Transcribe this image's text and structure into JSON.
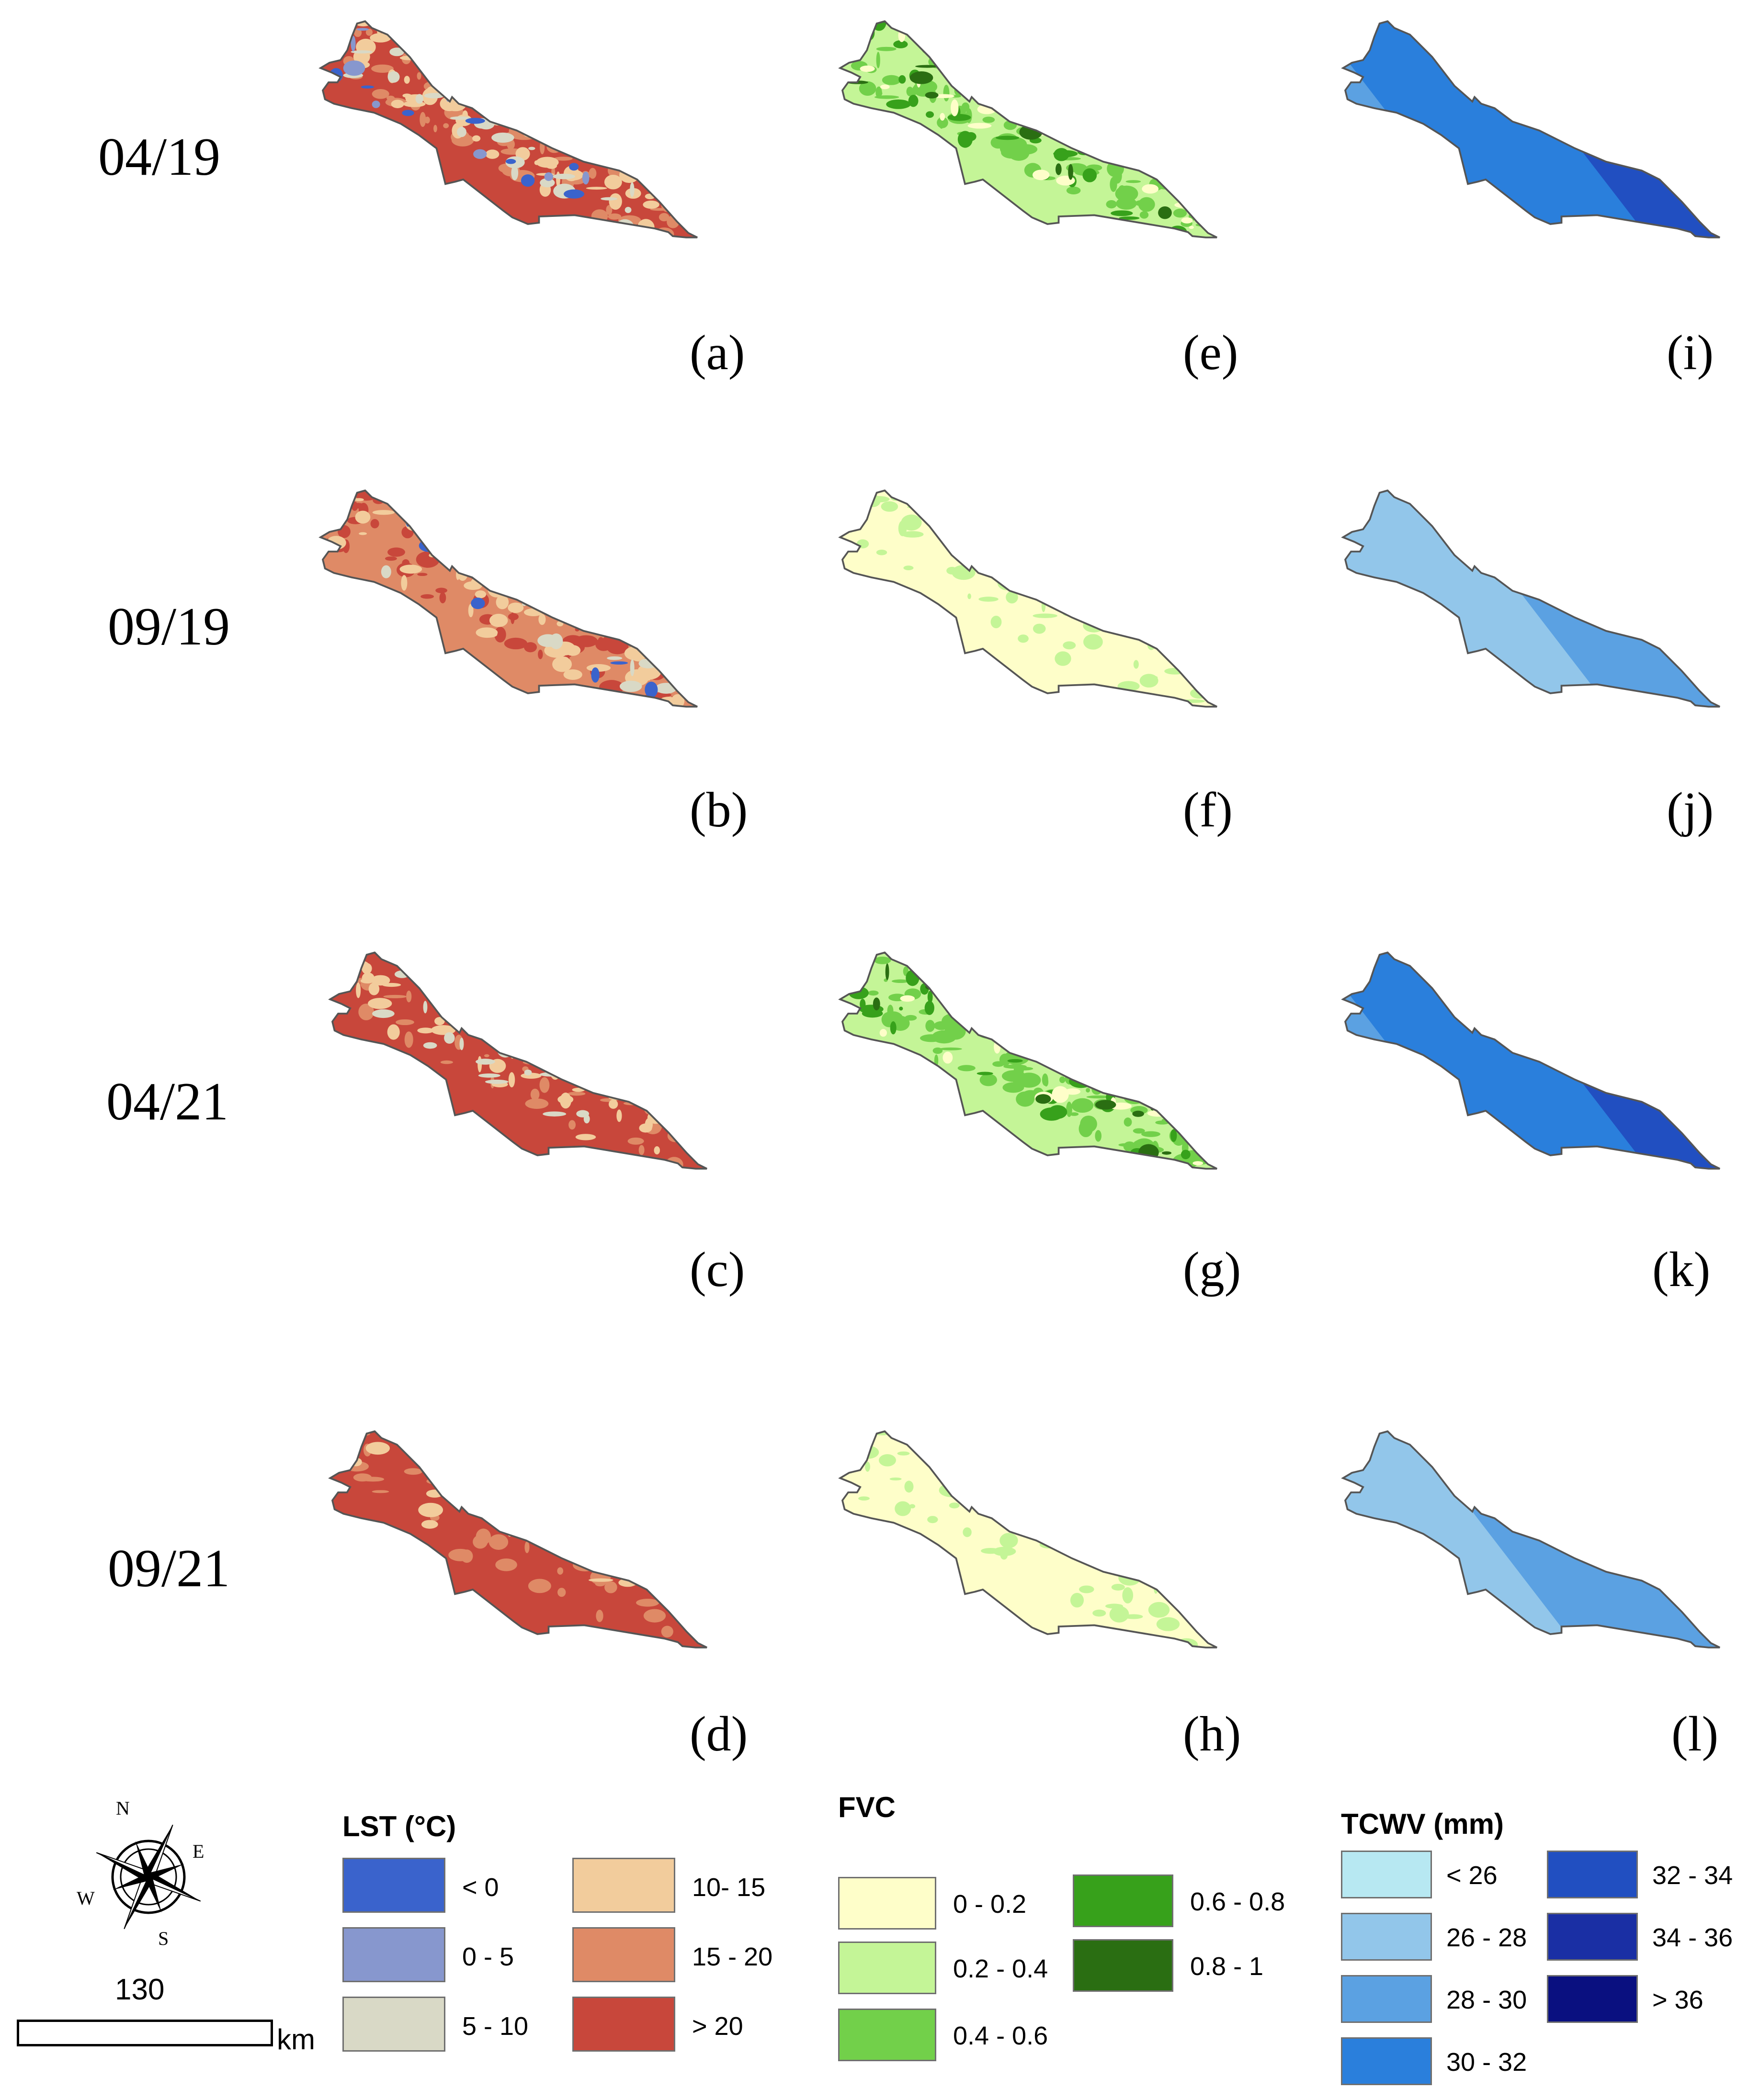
{
  "row_labels": [
    "04/19",
    "09/19",
    "04/21",
    "09/21"
  ],
  "panel_labels": [
    "(a)",
    "(b)",
    "(c)",
    "(d)",
    "(e)",
    "(f)",
    "(g)",
    "(h)",
    "(i)",
    "(j)",
    "(k)",
    "(l)"
  ],
  "variables": [
    "LST",
    "FVC",
    "TCWV"
  ],
  "compass": {
    "letters": [
      "N",
      "E",
      "S",
      "W"
    ],
    "icon": "compass-rose-icon"
  },
  "scale_bar": {
    "value": "130",
    "unit": "km"
  },
  "legends": {
    "lst": {
      "title": "LST (°C)",
      "classes": [
        {
          "label": "< 0",
          "color": "#3a63cc"
        },
        {
          "label": "0 - 5",
          "color": "#8797ce"
        },
        {
          "label": "5 - 10",
          "color": "#d9d9c6"
        },
        {
          "label": "10- 15",
          "color": "#f2cc9c"
        },
        {
          "label": "15 - 20",
          "color": "#df8a66"
        },
        {
          "label": "> 20",
          "color": "#c8473b"
        }
      ]
    },
    "fvc": {
      "title": "FVC",
      "classes": [
        {
          "label": "0 - 0.2",
          "color": "#fefec9"
        },
        {
          "label": "0.2 - 0.4",
          "color": "#c4f597"
        },
        {
          "label": "0.4 - 0.6",
          "color": "#72d04a"
        },
        {
          "label": "0.6 - 0.8",
          "color": "#37a11b"
        },
        {
          "label": "0.8 - 1",
          "color": "#2a6e12"
        }
      ]
    },
    "tcwv": {
      "title": "TCWV (mm)",
      "classes": [
        {
          "label": "< 26",
          "color": "#b7e8f2"
        },
        {
          "label": "26 - 28",
          "color": "#92c6ea"
        },
        {
          "label": "28 - 30",
          "color": "#5ba1e2"
        },
        {
          "label": "30 - 32",
          "color": "#2a7fdc"
        },
        {
          "label": "32 - 34",
          "color": "#214fc1"
        },
        {
          "label": "34 - 36",
          "color": "#1a2fa4"
        },
        {
          "label": "> 36",
          "color": "#0a1080"
        }
      ]
    }
  }
}
